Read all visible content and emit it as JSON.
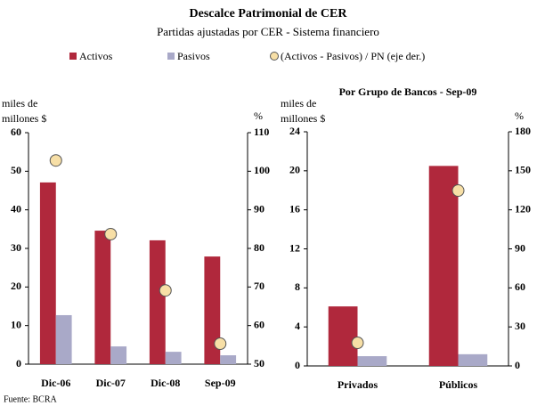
{
  "title": "Descalce Patrimonial de CER",
  "subtitle": "Partidas ajustadas por CER - Sistema financiero",
  "source": "Fuente: BCRA",
  "chart_data": [
    {
      "type": "bar",
      "ylabel": "miles de millones $",
      "y2label": "%",
      "categories": [
        "Dic-06",
        "Dic-07",
        "Dic-08",
        "Sep-09"
      ],
      "series": [
        {
          "name": "Activos",
          "type": "bar",
          "color": "#b0283c",
          "values": [
            47.1,
            34.6,
            32.1,
            27.9
          ]
        },
        {
          "name": "Pasivos",
          "type": "bar",
          "color": "#a9a9c8",
          "values": [
            12.7,
            4.6,
            3.2,
            2.3
          ]
        },
        {
          "name": "(Activos - Pasivos) / PN (eje der.)",
          "type": "scatter",
          "axis": "y2",
          "color": "#f7dfa6",
          "values": [
            102.8,
            83.7,
            69.1,
            55.3
          ]
        }
      ],
      "ylim": [
        0,
        60
      ],
      "yticks": [
        0,
        10,
        20,
        30,
        40,
        50,
        60
      ],
      "y2lim": [
        50,
        110
      ],
      "y2ticks": [
        50,
        60,
        70,
        80,
        90,
        100,
        110
      ]
    },
    {
      "type": "bar",
      "title": "Por Grupo de Bancos - Sep-09",
      "ylabel": "miles de millones $",
      "y2label": "%",
      "categories": [
        "Privados",
        "Públicos"
      ],
      "series": [
        {
          "type": "bar",
          "color": "#b0283c",
          "values": [
            6.1,
            20.5
          ]
        },
        {
          "type": "bar",
          "color": "#a9a9c8",
          "values": [
            1.0,
            1.2
          ]
        },
        {
          "type": "scatter",
          "axis": "y2",
          "color": "#f7dfa6",
          "values": [
            17.8,
            134.8
          ]
        }
      ],
      "ylim": [
        0,
        24
      ],
      "yticks": [
        0,
        4,
        8,
        12,
        16,
        20,
        24
      ],
      "y2lim": [
        0,
        180
      ],
      "y2ticks": [
        0,
        30,
        60,
        90,
        120,
        150,
        180
      ]
    }
  ]
}
